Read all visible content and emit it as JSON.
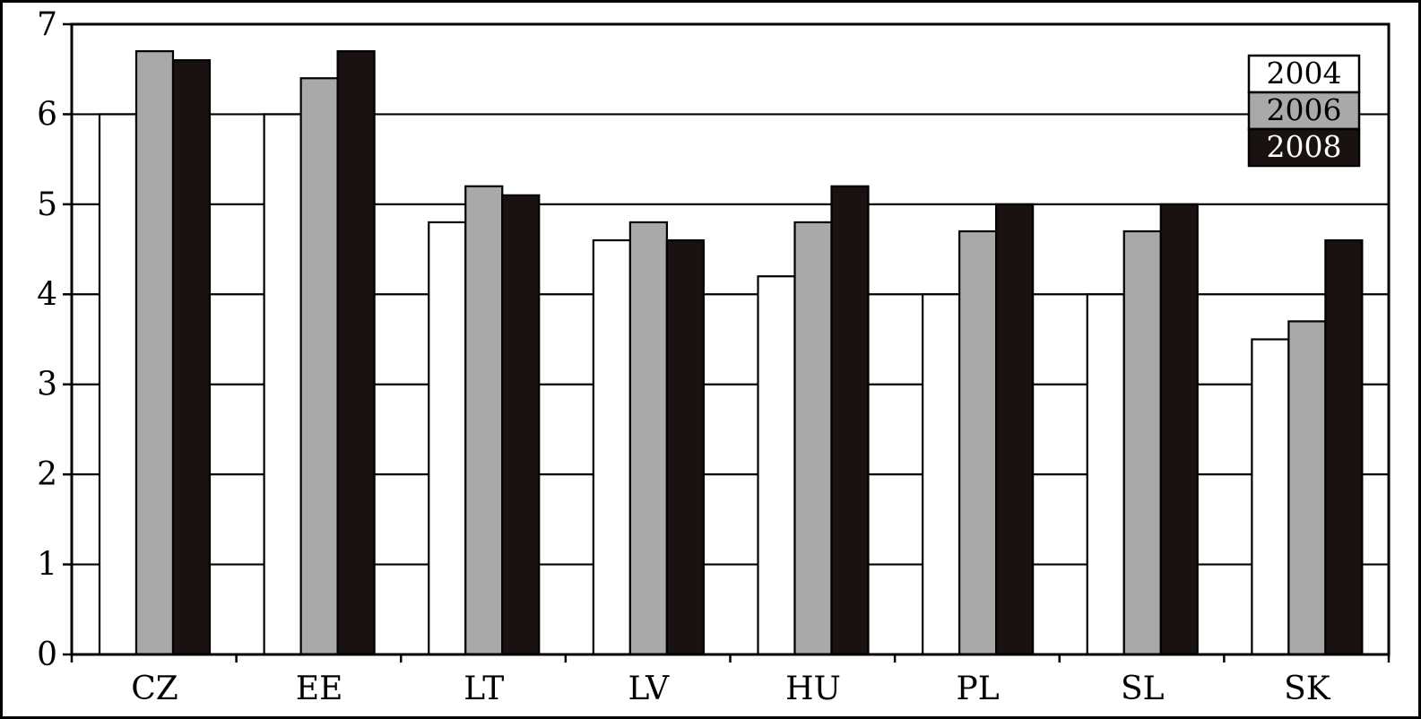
{
  "chart_data": {
    "type": "bar",
    "categories": [
      "CZ",
      "EE",
      "LT",
      "LV",
      "HU",
      "PL",
      "SL",
      "SK"
    ],
    "series": [
      {
        "name": "2004",
        "color": "#ffffff",
        "text_color": "#000000",
        "values": [
          6.0,
          6.0,
          4.8,
          4.6,
          4.2,
          4.0,
          4.0,
          3.5
        ]
      },
      {
        "name": "2006",
        "color": "#a9a9a9",
        "text_color": "#000000",
        "values": [
          6.7,
          6.4,
          5.2,
          4.8,
          4.8,
          4.7,
          4.7,
          3.7
        ]
      },
      {
        "name": "2008",
        "color": "#1a1210",
        "text_color": "#ffffff",
        "values": [
          6.6,
          6.7,
          5.1,
          4.6,
          5.2,
          5.0,
          5.0,
          4.6
        ]
      }
    ],
    "title": "",
    "xlabel": "",
    "ylabel": "",
    "ylim": [
      0,
      7
    ],
    "yticks": [
      "0",
      "1",
      "2",
      "3",
      "4",
      "5",
      "6",
      "7"
    ],
    "grid": true,
    "legend_position": "top-right"
  }
}
